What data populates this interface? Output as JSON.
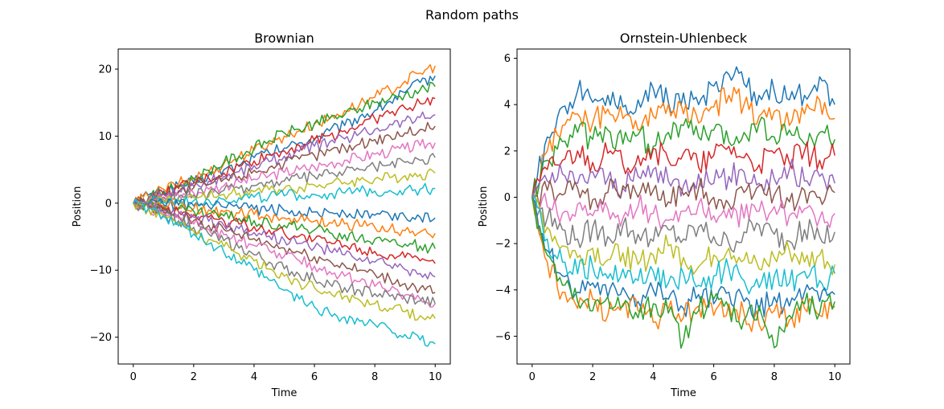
{
  "title": "Random paths",
  "palette": [
    "#1f77b4",
    "#ff7f0e",
    "#2ca02c",
    "#d62728",
    "#9467bd",
    "#8c564b",
    "#e377c2",
    "#7f7f7f",
    "#bcbd22",
    "#17becf"
  ],
  "chart_data": [
    {
      "type": "line",
      "title": "Brownian",
      "xlabel": "Time",
      "ylabel": "Position",
      "xlim": [
        -0.5,
        10.5
      ],
      "ylim": [
        -24,
        23
      ],
      "xticks": [
        0,
        2,
        4,
        6,
        8,
        10
      ],
      "yticks": [
        -20,
        -10,
        0,
        10,
        20
      ],
      "x": [
        0,
        0.5,
        1,
        1.5,
        2,
        2.5,
        3,
        3.5,
        4,
        4.5,
        5,
        5.5,
        6,
        6.5,
        7,
        7.5,
        8,
        8.5,
        9,
        9.5,
        10
      ],
      "series": [
        {
          "values": [
            0,
            1.2,
            1.8,
            2.6,
            3.1,
            4.2,
            5.0,
            5.6,
            6.8,
            7.5,
            8.2,
            9.0,
            9.6,
            10.8,
            11.6,
            12.9,
            13.8,
            15.2,
            16.5,
            18.0,
            19.0
          ]
        },
        {
          "values": [
            0,
            1.0,
            2.1,
            2.9,
            3.8,
            4.6,
            5.9,
            6.9,
            7.9,
            9.0,
            10.0,
            10.8,
            11.8,
            12.6,
            13.8,
            14.8,
            15.8,
            16.9,
            18.2,
            19.4,
            20.5
          ]
        },
        {
          "values": [
            0,
            0.8,
            1.6,
            2.5,
            3.6,
            4.9,
            6.1,
            7.0,
            8.2,
            9.3,
            10.5,
            11.0,
            11.9,
            12.6,
            13.2,
            14.1,
            15.0,
            15.6,
            16.2,
            16.9,
            17.4
          ]
        },
        {
          "values": [
            0,
            0.7,
            1.4,
            2.2,
            3.0,
            3.7,
            4.5,
            5.5,
            6.3,
            7.2,
            7.8,
            8.6,
            9.4,
            10.1,
            10.8,
            11.7,
            12.6,
            13.4,
            14.2,
            14.9,
            15.6
          ]
        },
        {
          "values": [
            0,
            0.6,
            1.3,
            1.9,
            2.5,
            3.3,
            4.0,
            4.7,
            5.6,
            6.2,
            7.0,
            7.7,
            8.5,
            9.1,
            9.6,
            10.4,
            11.0,
            11.8,
            12.3,
            12.8,
            13.2
          ]
        },
        {
          "values": [
            0,
            0.5,
            0.9,
            1.6,
            2.3,
            2.8,
            3.6,
            4.0,
            4.9,
            5.3,
            5.9,
            6.6,
            7.1,
            7.8,
            8.3,
            8.8,
            9.5,
            10.0,
            10.5,
            11.0,
            11.5
          ]
        },
        {
          "values": [
            0,
            0.4,
            0.8,
            1.2,
            1.5,
            2.1,
            2.6,
            3.2,
            3.6,
            4.1,
            4.6,
            5.0,
            5.4,
            5.9,
            6.4,
            6.8,
            7.3,
            7.7,
            8.1,
            8.6,
            9.0
          ]
        },
        {
          "values": [
            0,
            0.3,
            0.5,
            0.9,
            1.2,
            1.5,
            1.9,
            2.2,
            2.6,
            3.0,
            3.3,
            3.7,
            4.0,
            4.4,
            4.7,
            5.0,
            5.4,
            5.7,
            6.1,
            6.4,
            6.8
          ]
        },
        {
          "values": [
            0,
            0.2,
            0.4,
            0.6,
            0.8,
            1.0,
            1.3,
            1.5,
            1.7,
            2.0,
            2.2,
            2.4,
            2.7,
            2.9,
            3.1,
            3.4,
            3.6,
            3.8,
            4.1,
            4.3,
            4.5
          ]
        },
        {
          "values": [
            0,
            0.1,
            0.2,
            0.3,
            0.4,
            0.5,
            0.6,
            0.8,
            0.9,
            1.0,
            1.1,
            1.2,
            1.3,
            1.4,
            1.5,
            1.7,
            1.8,
            1.9,
            2.0,
            2.1,
            2.2
          ]
        },
        {
          "values": [
            0,
            -0.1,
            -0.2,
            -0.3,
            -0.4,
            -0.5,
            -0.6,
            -0.8,
            -0.9,
            -1.0,
            -1.1,
            -1.2,
            -1.3,
            -1.4,
            -1.5,
            -1.7,
            -1.8,
            -1.9,
            -2.0,
            -2.1,
            -2.2
          ]
        },
        {
          "values": [
            0,
            -0.2,
            -0.4,
            -0.6,
            -0.8,
            -1.0,
            -1.3,
            -1.5,
            -1.7,
            -2.0,
            -2.2,
            -2.4,
            -2.7,
            -2.9,
            -3.1,
            -3.4,
            -3.6,
            -3.8,
            -4.1,
            -4.3,
            -4.5
          ]
        },
        {
          "values": [
            0,
            -0.3,
            -0.6,
            -0.9,
            -1.2,
            -1.6,
            -1.9,
            -2.3,
            -2.6,
            -3.0,
            -3.3,
            -3.7,
            -4.0,
            -4.4,
            -4.7,
            -5.1,
            -5.4,
            -5.8,
            -6.1,
            -6.4,
            -6.8
          ]
        },
        {
          "values": [
            0,
            -0.4,
            -0.8,
            -1.3,
            -1.7,
            -2.1,
            -2.6,
            -3.1,
            -3.5,
            -4.0,
            -4.5,
            -4.9,
            -5.4,
            -5.8,
            -6.3,
            -6.7,
            -7.2,
            -7.7,
            -8.1,
            -8.6,
            -9.0
          ]
        },
        {
          "values": [
            0,
            -0.5,
            -1.0,
            -1.6,
            -2.1,
            -2.7,
            -3.3,
            -3.8,
            -4.4,
            -4.9,
            -5.5,
            -6.0,
            -6.6,
            -7.1,
            -7.7,
            -8.2,
            -8.8,
            -9.3,
            -9.9,
            -10.5,
            -11.0
          ]
        },
        {
          "values": [
            0,
            -0.6,
            -1.3,
            -1.9,
            -2.6,
            -3.3,
            -3.9,
            -4.6,
            -5.3,
            -6.0,
            -6.7,
            -7.3,
            -8.0,
            -8.6,
            -9.3,
            -10.0,
            -10.6,
            -11.3,
            -12.0,
            -12.7,
            -13.3
          ]
        },
        {
          "values": [
            0,
            -0.7,
            -1.5,
            -2.3,
            -3.1,
            -3.9,
            -4.7,
            -5.5,
            -6.3,
            -7.1,
            -7.9,
            -8.6,
            -9.4,
            -10.2,
            -10.9,
            -11.7,
            -12.4,
            -13.0,
            -13.7,
            -14.3,
            -15.0
          ]
        },
        {
          "values": [
            0,
            -0.8,
            -1.7,
            -2.6,
            -3.6,
            -4.6,
            -5.6,
            -6.7,
            -7.7,
            -8.8,
            -9.8,
            -10.7,
            -11.3,
            -12.0,
            -12.6,
            -13.0,
            -13.5,
            -13.9,
            -14.3,
            -14.6,
            -15.0
          ]
        },
        {
          "values": [
            0,
            -0.9,
            -1.9,
            -3.0,
            -4.2,
            -5.4,
            -6.5,
            -7.6,
            -8.6,
            -9.8,
            -10.9,
            -11.9,
            -12.6,
            -13.2,
            -13.9,
            -14.5,
            -15.0,
            -15.7,
            -16.2,
            -16.8,
            -17.2
          ]
        },
        {
          "values": [
            0,
            -0.8,
            -2.0,
            -3.4,
            -4.6,
            -6.1,
            -7.3,
            -8.7,
            -10.0,
            -11.5,
            -13.0,
            -14.3,
            -15.5,
            -16.4,
            -17.0,
            -17.6,
            -18.1,
            -18.8,
            -19.6,
            -20.4,
            -21.0
          ]
        }
      ]
    },
    {
      "type": "line",
      "title": "Ornstein-Uhlenbeck",
      "xlabel": "Time",
      "ylabel": "Position",
      "xlim": [
        -0.5,
        10.5
      ],
      "ylim": [
        -7.2,
        6.4
      ],
      "xticks": [
        0,
        2,
        4,
        6,
        8,
        10
      ],
      "yticks": [
        -6,
        -4,
        -2,
        0,
        2,
        4,
        6
      ],
      "x": [
        0,
        0.5,
        1,
        1.5,
        2,
        2.5,
        3,
        3.5,
        4,
        4.5,
        5,
        5.5,
        6,
        6.5,
        7,
        7.5,
        8,
        8.5,
        9,
        9.5,
        10
      ],
      "series": [
        {
          "values": [
            0,
            2.6,
            3.9,
            4.6,
            4.1,
            4.4,
            3.9,
            4.2,
            4.7,
            4.1,
            4.5,
            4.0,
            4.8,
            5.3,
            4.9,
            4.4,
            4.6,
            4.2,
            4.4,
            5.2,
            4.0
          ]
        },
        {
          "values": [
            0,
            2.0,
            3.1,
            3.6,
            3.2,
            3.8,
            3.4,
            2.9,
            3.5,
            4.0,
            3.6,
            3.2,
            3.9,
            4.4,
            4.0,
            3.5,
            3.7,
            3.1,
            3.6,
            4.2,
            3.4
          ]
        },
        {
          "values": [
            0,
            1.6,
            2.4,
            2.8,
            2.5,
            2.9,
            2.3,
            2.7,
            2.2,
            2.8,
            3.1,
            2.6,
            2.9,
            2.4,
            2.8,
            3.2,
            2.6,
            2.9,
            2.3,
            2.8,
            2.5
          ]
        },
        {
          "values": [
            0,
            1.2,
            1.6,
            2.0,
            1.5,
            1.9,
            1.4,
            1.8,
            2.1,
            1.6,
            1.9,
            1.3,
            1.8,
            2.2,
            1.7,
            1.4,
            1.9,
            1.5,
            2.0,
            1.6,
            1.8
          ]
        },
        {
          "values": [
            0,
            0.7,
            1.0,
            0.6,
            1.1,
            0.8,
            0.4,
            0.9,
            1.2,
            0.7,
            0.5,
            1.0,
            0.6,
            0.9,
            1.1,
            0.6,
            0.8,
            1.2,
            0.7,
            0.9,
            0.6
          ]
        },
        {
          "values": [
            0,
            0.3,
            0.1,
            0.4,
            -0.1,
            0.2,
            0.5,
            0.0,
            0.3,
            -0.2,
            0.1,
            0.4,
            0.0,
            -0.3,
            0.2,
            0.5,
            0.1,
            -0.2,
            0.3,
            0.0,
            0.2
          ]
        },
        {
          "values": [
            0,
            -0.4,
            -0.7,
            -0.3,
            -0.8,
            -0.5,
            -0.9,
            -0.4,
            -0.7,
            -1.0,
            -0.6,
            -0.3,
            -0.8,
            -0.5,
            -0.9,
            -0.6,
            -0.4,
            -0.8,
            -0.5,
            -0.9,
            -0.7
          ]
        },
        {
          "values": [
            0,
            -0.9,
            -1.4,
            -1.8,
            -1.3,
            -1.7,
            -1.2,
            -1.6,
            -1.9,
            -1.4,
            -1.8,
            -1.3,
            -1.7,
            -2.0,
            -1.5,
            -1.2,
            -1.6,
            -1.9,
            -1.4,
            -1.7,
            -1.5
          ]
        },
        {
          "values": [
            0,
            -1.3,
            -2.1,
            -2.6,
            -2.2,
            -2.7,
            -2.4,
            -2.9,
            -2.5,
            -2.1,
            -2.6,
            -3.0,
            -2.5,
            -2.2,
            -2.7,
            -3.1,
            -2.6,
            -2.3,
            -2.8,
            -2.5,
            -2.9
          ]
        },
        {
          "values": [
            0,
            -1.8,
            -2.8,
            -3.3,
            -3.0,
            -3.5,
            -3.1,
            -3.6,
            -3.2,
            -3.7,
            -3.3,
            -3.8,
            -3.4,
            -3.1,
            -3.6,
            -3.9,
            -3.4,
            -3.7,
            -3.2,
            -3.6,
            -3.3
          ]
        },
        {
          "values": [
            0,
            -2.3,
            -3.4,
            -4.1,
            -3.7,
            -4.3,
            -3.9,
            -4.5,
            -4.0,
            -4.4,
            -4.8,
            -4.2,
            -4.6,
            -4.1,
            -4.5,
            -4.9,
            -4.3,
            -4.7,
            -4.1,
            -4.5,
            -4.2
          ]
        },
        {
          "values": [
            0,
            -2.8,
            -4.1,
            -4.8,
            -4.4,
            -5.1,
            -4.6,
            -4.9,
            -5.4,
            -4.8,
            -5.2,
            -4.7,
            -5.1,
            -4.6,
            -5.0,
            -5.5,
            -4.9,
            -5.3,
            -4.8,
            -5.1,
            -4.7
          ]
        },
        {
          "values": [
            0,
            -2.5,
            -3.8,
            -4.5,
            -4.9,
            -4.3,
            -4.7,
            -5.2,
            -4.6,
            -5.0,
            -6.2,
            -4.9,
            -4.4,
            -4.8,
            -5.3,
            -4.7,
            -6.5,
            -5.1,
            -4.6,
            -5.0,
            -4.5
          ]
        }
      ]
    }
  ]
}
